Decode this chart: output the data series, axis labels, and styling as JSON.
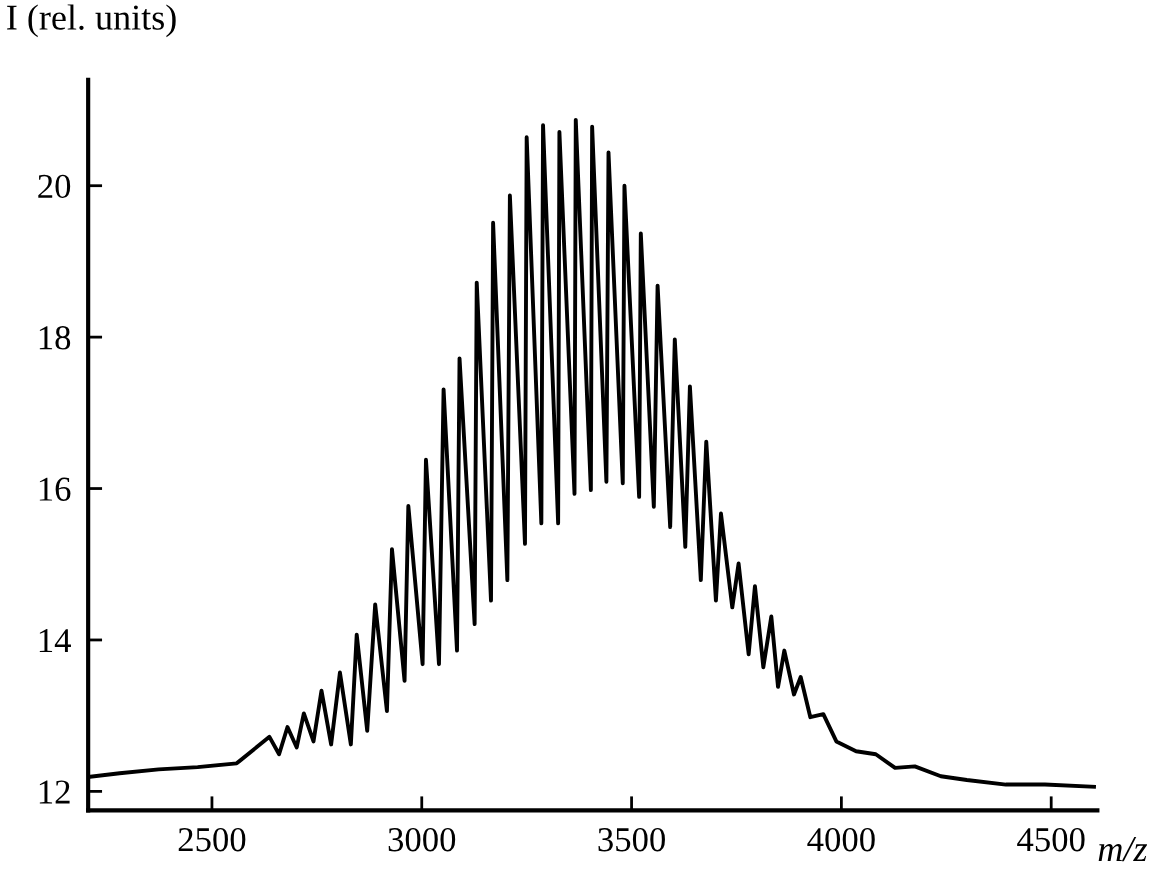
{
  "chart_data": {
    "type": "line",
    "xlabel": "m/z",
    "ylabel": "I (rel. units)",
    "xlim": [
      2205,
      4610
    ],
    "ylim": [
      11.75,
      21.4
    ],
    "xticks": [
      2500,
      3000,
      3500,
      4000,
      4500
    ],
    "yticks": [
      12,
      14,
      16,
      18,
      20
    ],
    "grid": false,
    "legend": false,
    "marker": "none",
    "line_style": "solid",
    "series": [
      {
        "color": "#000000",
        "x": [
          2205,
          2280,
          2373,
          2466,
          2559,
          2637,
          2660,
          2680,
          2702,
          2719,
          2742,
          2761,
          2784,
          2805,
          2831,
          2845,
          2870,
          2889,
          2917,
          2929,
          2959,
          2968,
          3002,
          3010,
          3041,
          3052,
          3084,
          3090,
          3126,
          3131,
          3165,
          3170,
          3204,
          3210,
          3246,
          3250,
          3285,
          3289,
          3325,
          3328,
          3364,
          3367,
          3403,
          3406,
          3440,
          3445,
          3479,
          3483,
          3518,
          3522,
          3553,
          3562,
          3592,
          3603,
          3628,
          3639,
          3665,
          3678,
          3701,
          3713,
          3740,
          3755,
          3779,
          3794,
          3814,
          3833,
          3849,
          3864,
          3887,
          3903,
          3926,
          3957,
          3988,
          4035,
          4082,
          4128,
          4175,
          4237,
          4299,
          4392,
          4485,
          4602
        ],
        "values": [
          12.19,
          12.24,
          12.29,
          12.32,
          12.37,
          12.72,
          12.49,
          12.85,
          12.58,
          13.03,
          12.66,
          13.33,
          12.62,
          13.57,
          12.62,
          14.07,
          12.8,
          14.47,
          13.06,
          15.2,
          13.46,
          15.77,
          13.68,
          16.38,
          13.68,
          17.31,
          13.86,
          17.72,
          14.21,
          18.72,
          14.52,
          19.51,
          14.79,
          19.87,
          15.27,
          20.64,
          15.54,
          20.8,
          15.54,
          20.71,
          15.93,
          20.87,
          15.98,
          20.78,
          16.09,
          20.44,
          16.07,
          20.0,
          15.89,
          19.37,
          15.76,
          18.68,
          15.49,
          17.97,
          15.23,
          17.35,
          14.79,
          16.62,
          14.52,
          15.67,
          14.43,
          15.01,
          13.81,
          14.71,
          13.64,
          14.31,
          13.38,
          13.86,
          13.28,
          13.51,
          12.98,
          13.02,
          12.66,
          12.53,
          12.49,
          12.31,
          12.33,
          12.2,
          12.15,
          12.09,
          12.09,
          12.06
        ]
      }
    ]
  }
}
